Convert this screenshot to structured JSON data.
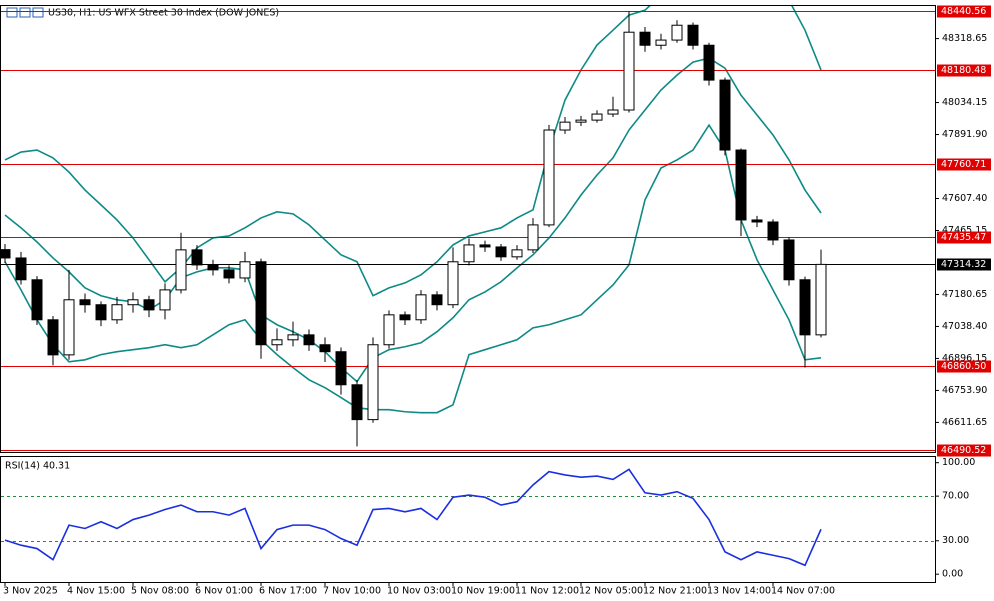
{
  "chart_data": [
    {
      "type": "candlestick",
      "title": "US30, H1:  US WFX Street 30 Index (DOW JONES)",
      "categories": [
        "3 Nov 2025",
        null,
        null,
        null,
        "4 Nov 15:00",
        null,
        null,
        null,
        "5 Nov 08:00",
        null,
        null,
        null,
        "6 Nov 01:00",
        null,
        null,
        null,
        "6 Nov 17:00",
        null,
        null,
        null,
        "7 Nov 10:00",
        null,
        null,
        null,
        "10 Nov 03:00",
        null,
        null,
        null,
        "10 Nov 19:00",
        null,
        null,
        null,
        "11 Nov 12:00",
        null,
        null,
        null,
        "12 Nov 05:00",
        null,
        null,
        null,
        "12 Nov 21:00",
        null,
        null,
        null,
        "13 Nov 14:00",
        null,
        null,
        null,
        "14 Nov 07:00",
        null,
        null,
        null
      ],
      "open": [
        47380,
        47343,
        47246,
        47068,
        46912,
        47157,
        47135,
        47068,
        47135,
        47157,
        47112,
        47201,
        47379,
        47312,
        47290,
        47254,
        47326,
        46957,
        46979,
        47001,
        46957,
        46926,
        46779,
        46624,
        46957,
        47090,
        47068,
        47179,
        47135,
        47326,
        47401,
        47392,
        47348,
        47379,
        47490,
        47912,
        47947,
        47956,
        47983,
        48001,
        48347,
        48289,
        48312,
        48378,
        48289,
        48134,
        47823,
        47512,
        47503,
        47423,
        47246,
        47001
      ],
      "high": [
        47405,
        47370,
        47262,
        47085,
        47290,
        47185,
        47150,
        47170,
        47190,
        47175,
        47230,
        47455,
        47400,
        47335,
        47310,
        47370,
        47340,
        47030,
        47060,
        47025,
        46990,
        46945,
        46800,
        46990,
        47110,
        47105,
        47200,
        47195,
        47390,
        47430,
        47420,
        47405,
        47400,
        47520,
        47935,
        47970,
        47975,
        48000,
        48060,
        48440,
        48370,
        48340,
        48400,
        48390,
        48300,
        48145,
        47830,
        47530,
        47515,
        47435,
        47260,
        47380
      ],
      "low": [
        47320,
        47225,
        47045,
        46865,
        46890,
        47100,
        47040,
        47050,
        47100,
        47080,
        47070,
        47185,
        47290,
        47265,
        47230,
        47235,
        46895,
        46930,
        46950,
        46930,
        46880,
        46735,
        46505,
        46610,
        46940,
        47045,
        47050,
        47110,
        47120,
        47310,
        47370,
        47330,
        47335,
        47365,
        47480,
        47895,
        47930,
        47945,
        47970,
        47990,
        48260,
        48270,
        48300,
        48270,
        48110,
        47800,
        47440,
        47480,
        47400,
        47220,
        46855,
        46990
      ],
      "close": [
        47343,
        47246,
        47068,
        46912,
        47157,
        47135,
        47068,
        47135,
        47157,
        47112,
        47201,
        47379,
        47312,
        47290,
        47254,
        47326,
        46957,
        46979,
        47001,
        46957,
        46926,
        46779,
        46624,
        46957,
        47090,
        47068,
        47179,
        47135,
        47326,
        47401,
        47392,
        47348,
        47379,
        47490,
        47912,
        47947,
        47956,
        47983,
        48001,
        48347,
        48289,
        48312,
        48378,
        48289,
        48134,
        47823,
        47512,
        47503,
        47423,
        47246,
        47001,
        47314.32
      ],
      "bands": {
        "color": "#0e8a86",
        "upper": [
          47779,
          47814,
          47823,
          47788,
          47725,
          47645,
          47579,
          47512,
          47432,
          47335,
          47237,
          47299,
          47388,
          47432,
          47441,
          47477,
          47521,
          47548,
          47539,
          47490,
          47423,
          47357,
          47326,
          47175,
          47210,
          47232,
          47268,
          47326,
          47401,
          47441,
          47459,
          47477,
          47521,
          47557,
          47823,
          48045,
          48179,
          48290,
          48356,
          48423,
          48445,
          48512,
          48534,
          48578,
          48667,
          48734,
          48756,
          48734,
          48623,
          48489,
          48356,
          48179
        ],
        "middle": [
          47534,
          47477,
          47414,
          47343,
          47281,
          47210,
          47175,
          47157,
          47148,
          47112,
          47157,
          47255,
          47281,
          47299,
          47299,
          47290,
          47090,
          47046,
          47015,
          46979,
          46926,
          46855,
          46793,
          46899,
          46935,
          46948,
          46966,
          47015,
          47077,
          47157,
          47192,
          47237,
          47299,
          47357,
          47432,
          47521,
          47623,
          47712,
          47788,
          47912,
          48001,
          48090,
          48156,
          48214,
          48232,
          48187,
          48067,
          47979,
          47890,
          47779,
          47645,
          47543
        ],
        "lower": [
          47326,
          47201,
          47068,
          46957,
          46881,
          46890,
          46913,
          46926,
          46935,
          46944,
          46957,
          46944,
          46957,
          47001,
          47046,
          47068,
          46979,
          46913,
          46855,
          46801,
          46766,
          46722,
          46677,
          46668,
          46668,
          46659,
          46655,
          46655,
          46690,
          46913,
          46935,
          46957,
          46979,
          47032,
          47046,
          47068,
          47090,
          47157,
          47223,
          47312,
          47601,
          47743,
          47779,
          47823,
          47934,
          47823,
          47512,
          47335,
          47201,
          47068,
          46890,
          46899
        ]
      },
      "levels": [
        48440.56,
        48180.48,
        47760.71,
        47435.47,
        {
          "value": 46860.5,
          "label": "46860.50"
        },
        46490.52
      ],
      "level_color": "#e00000",
      "current_price": 47314.32,
      "ylim": [
        46480,
        48468
      ],
      "yticks": [
        48318.65,
        48034.15,
        {
          "value": 47891.9,
          "label": "47891.90"
        },
        {
          "value": 47607.4,
          "label": "47607.40"
        },
        47465.15,
        47180.65,
        {
          "value": 47038.4,
          "label": "47038.40"
        },
        46896.15,
        {
          "value": 46753.9,
          "label": "46753.90"
        },
        46611.65
      ]
    },
    {
      "type": "line",
      "title": "RSI(14) 40.31",
      "color": "#1a2fe0",
      "values": [
        30.6,
        26,
        23,
        13,
        44,
        41,
        47,
        41,
        49,
        53,
        58,
        62,
        56,
        56,
        53,
        59,
        23,
        40,
        44,
        44,
        40,
        32,
        26,
        58,
        59,
        56,
        59,
        49,
        69,
        71,
        69,
        62,
        65,
        80,
        92,
        89,
        87,
        88,
        85,
        94,
        73,
        71,
        74,
        68,
        49,
        20,
        13,
        20,
        17,
        14,
        8,
        40.31
      ],
      "guides": [
        70,
        30
      ],
      "ylim": [
        -7,
        106
      ],
      "yticks": [
        {
          "value": 100,
          "label": "100.00"
        },
        {
          "value": 70,
          "label": "70.00"
        },
        {
          "value": 30,
          "label": "30.00"
        },
        {
          "value": 0,
          "label": "0.00"
        }
      ]
    }
  ]
}
